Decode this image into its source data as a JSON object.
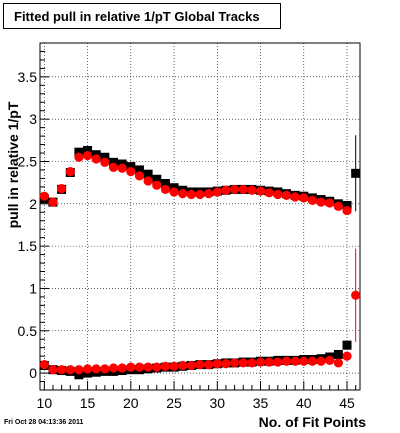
{
  "page": {
    "timestamp": "Fri Oct 28 04:13:36 2011"
  },
  "chart_data": {
    "type": "scatter",
    "title": "Fitted pull in relative 1/pT  Global Tracks",
    "xlabel": "No. of Fit Points",
    "ylabel": "pull in relative 1/pT",
    "xlim": [
      9.5,
      46.5
    ],
    "ylim": [
      -0.2,
      3.9
    ],
    "x_ticks": [
      10,
      15,
      20,
      25,
      30,
      35,
      40,
      45
    ],
    "y_ticks": [
      0,
      0.5,
      1,
      1.5,
      2,
      2.5,
      3,
      3.5
    ],
    "y_tick_labels": [
      "0",
      "0.5",
      "1",
      "1.5",
      "2",
      "2.5",
      "3",
      "3.5"
    ],
    "grid": true,
    "series": [
      {
        "color": "#000000",
        "marker": "square",
        "x": [
          10,
          11,
          12,
          13,
          14,
          15,
          16,
          17,
          18,
          19,
          20,
          21,
          22,
          23,
          24,
          25,
          26,
          27,
          28,
          29,
          30,
          31,
          32,
          33,
          34,
          35,
          36,
          37,
          38,
          39,
          40,
          41,
          42,
          43,
          44,
          45,
          46
        ],
        "y": [
          2.06,
          2.02,
          2.17,
          2.37,
          2.61,
          2.63,
          2.58,
          2.55,
          2.49,
          2.47,
          2.44,
          2.4,
          2.35,
          2.29,
          2.24,
          2.19,
          2.16,
          2.14,
          2.14,
          2.14,
          2.15,
          2.16,
          2.17,
          2.17,
          2.17,
          2.16,
          2.15,
          2.14,
          2.12,
          2.1,
          2.09,
          2.07,
          2.05,
          2.03,
          2.0,
          1.98,
          2.36
        ],
        "err": [
          0,
          0,
          0,
          0,
          0,
          0,
          0,
          0,
          0,
          0,
          0,
          0,
          0,
          0,
          0,
          0,
          0,
          0,
          0,
          0,
          0,
          0,
          0,
          0,
          0,
          0,
          0,
          0,
          0,
          0,
          0,
          0,
          0,
          0,
          0,
          0,
          0.45
        ]
      },
      {
        "color": "#ff0000",
        "marker": "circle",
        "x": [
          10,
          11,
          12,
          13,
          14,
          15,
          16,
          17,
          18,
          19,
          20,
          21,
          22,
          23,
          24,
          25,
          26,
          27,
          28,
          29,
          30,
          31,
          32,
          33,
          34,
          35,
          36,
          37,
          38,
          39,
          40,
          41,
          42,
          43,
          44,
          45,
          46
        ],
        "y": [
          2.09,
          2.02,
          2.18,
          2.38,
          2.55,
          2.57,
          2.53,
          2.49,
          2.43,
          2.42,
          2.38,
          2.33,
          2.27,
          2.22,
          2.17,
          2.14,
          2.12,
          2.11,
          2.11,
          2.12,
          2.14,
          2.16,
          2.17,
          2.17,
          2.16,
          2.15,
          2.13,
          2.11,
          2.1,
          2.08,
          2.07,
          2.04,
          2.02,
          2.01,
          1.97,
          1.92,
          0.92
        ],
        "err": [
          0,
          0,
          0,
          0,
          0,
          0,
          0,
          0,
          0,
          0,
          0,
          0,
          0,
          0,
          0,
          0,
          0,
          0,
          0,
          0,
          0,
          0,
          0,
          0,
          0,
          0,
          0,
          0,
          0,
          0,
          0,
          0,
          0,
          0,
          0,
          0,
          0.55
        ]
      },
      {
        "color": "#000000",
        "marker": "square",
        "x": [
          10,
          11,
          12,
          13,
          14,
          15,
          16,
          17,
          18,
          19,
          20,
          21,
          22,
          23,
          24,
          25,
          26,
          27,
          28,
          29,
          30,
          31,
          32,
          33,
          34,
          35,
          36,
          37,
          38,
          39,
          40,
          41,
          42,
          43,
          44,
          45
        ],
        "y": [
          0.09,
          0.04,
          0.03,
          0.02,
          -0.02,
          0.0,
          0.01,
          0.02,
          0.02,
          0.03,
          0.04,
          0.04,
          0.05,
          0.06,
          0.07,
          0.07,
          0.08,
          0.09,
          0.1,
          0.1,
          0.11,
          0.12,
          0.12,
          0.13,
          0.13,
          0.14,
          0.14,
          0.15,
          0.15,
          0.15,
          0.16,
          0.16,
          0.17,
          0.19,
          0.22,
          0.33
        ],
        "err": [
          0,
          0,
          0,
          0,
          0,
          0,
          0,
          0,
          0,
          0,
          0,
          0,
          0,
          0,
          0,
          0,
          0,
          0,
          0,
          0,
          0,
          0,
          0,
          0,
          0,
          0,
          0,
          0,
          0,
          0,
          0,
          0,
          0,
          0,
          0,
          0
        ]
      },
      {
        "color": "#ff0000",
        "marker": "circle",
        "x": [
          10,
          11,
          12,
          13,
          14,
          15,
          16,
          17,
          18,
          19,
          20,
          21,
          22,
          23,
          24,
          25,
          26,
          27,
          28,
          29,
          30,
          31,
          32,
          33,
          34,
          35,
          36,
          37,
          38,
          39,
          40,
          41,
          42,
          43,
          44,
          45
        ],
        "y": [
          0.1,
          0.04,
          0.04,
          0.04,
          0.04,
          0.05,
          0.05,
          0.05,
          0.06,
          0.06,
          0.07,
          0.07,
          0.07,
          0.07,
          0.08,
          0.08,
          0.09,
          0.09,
          0.1,
          0.1,
          0.11,
          0.11,
          0.12,
          0.12,
          0.12,
          0.13,
          0.13,
          0.13,
          0.14,
          0.14,
          0.14,
          0.14,
          0.14,
          0.15,
          0.12,
          0.2
        ],
        "err": [
          0,
          0,
          0,
          0,
          0,
          0,
          0,
          0,
          0,
          0,
          0,
          0,
          0,
          0,
          0,
          0,
          0,
          0,
          0,
          0,
          0,
          0,
          0,
          0,
          0,
          0,
          0,
          0,
          0,
          0,
          0,
          0,
          0,
          0,
          0,
          0
        ]
      }
    ]
  }
}
